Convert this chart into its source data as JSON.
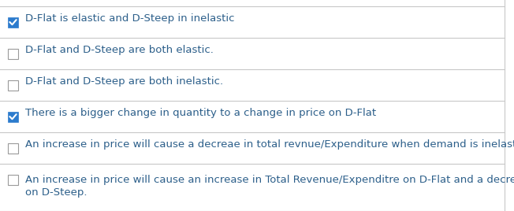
{
  "background_color": "#ffffff",
  "separator_color": "#c8c8c8",
  "right_border_color": "#c8c8c8",
  "text_color": "#2c5f8a",
  "checkbox_border_color": "#9a9a9a",
  "checkbox_checked_bg": "#2c7bcd",
  "checkbox_check_color": "#ffffff",
  "items": [
    {
      "checked": true,
      "lines": [
        "D-Flat is elastic and D-Steep in inelastic"
      ],
      "multiline": false
    },
    {
      "checked": false,
      "lines": [
        "D-Flat and D-Steep are both elastic."
      ],
      "multiline": false
    },
    {
      "checked": false,
      "lines": [
        "D-Flat and D-Steep are both inelastic."
      ],
      "multiline": false
    },
    {
      "checked": true,
      "lines": [
        "There is a bigger change in quantity to a change in price on D-Flat"
      ],
      "multiline": false
    },
    {
      "checked": false,
      "lines": [
        "An increase in price will cause a decreae in total revnue/Expenditure when demand is inelastic."
      ],
      "multiline": false
    },
    {
      "checked": false,
      "lines": [
        "An increase in price will cause an increase in Total Revenue/Expenditre on D-Flat and a decrease",
        "on D-Steep."
      ],
      "multiline": true
    }
  ],
  "font_size": 9.5,
  "figsize": [
    6.52,
    2.68
  ],
  "dpi": 100
}
